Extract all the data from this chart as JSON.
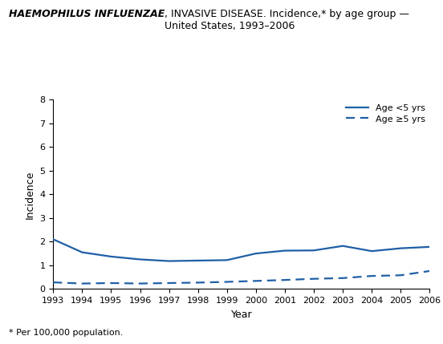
{
  "title_italic": "HAEMOPHILUS INFLUENZAE",
  "title_normal": ", INVASIVE DISEASE. Incidence,* by age group —\nUnited States, 1993–2006",
  "years": [
    1993,
    1994,
    1995,
    1996,
    1997,
    1998,
    1999,
    2000,
    2001,
    2002,
    2003,
    2004,
    2005,
    2006
  ],
  "age_lt5": [
    2.1,
    1.55,
    1.37,
    1.25,
    1.18,
    1.2,
    1.22,
    1.5,
    1.62,
    1.63,
    1.82,
    1.6,
    1.72,
    1.78
  ],
  "age_ge5": [
    0.28,
    0.23,
    0.25,
    0.23,
    0.25,
    0.27,
    0.3,
    0.34,
    0.38,
    0.43,
    0.46,
    0.55,
    0.58,
    0.76
  ],
  "line_color": "#1F5FA6",
  "ylim": [
    0,
    8
  ],
  "yticks": [
    0,
    1,
    2,
    3,
    4,
    5,
    6,
    7,
    8
  ],
  "xlabel": "Year",
  "ylabel": "Incidence",
  "legend_label_lt5": "Age <5 yrs",
  "legend_label_ge5": "Age ≥5 yrs",
  "footnote": "* Per 100,000 population.",
  "background_color": "#ffffff",
  "title_fontsize": 9,
  "tick_fontsize": 8,
  "axis_label_fontsize": 9,
  "footnote_fontsize": 8
}
